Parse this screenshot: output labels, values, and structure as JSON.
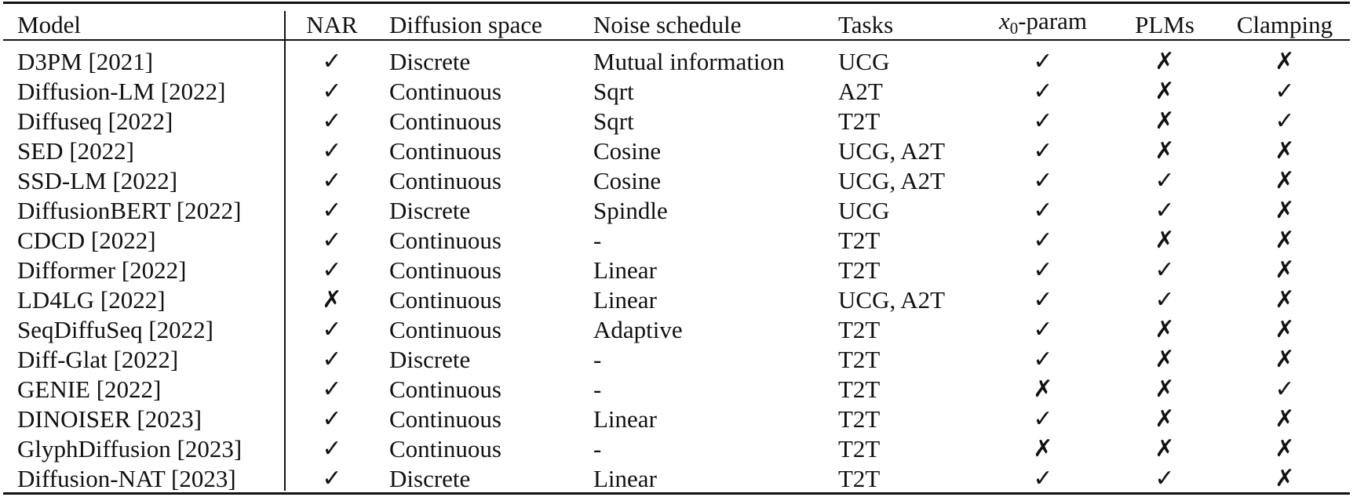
{
  "table": {
    "headers": {
      "model": "Model",
      "nar": "NAR",
      "diffusion_space": "Diffusion space",
      "noise_schedule": "Noise schedule",
      "tasks": "Tasks",
      "x0_param_var": "x",
      "x0_param_sub": "0",
      "x0_param_suffix": "-param",
      "plms": "PLMs",
      "clamping": "Clamping"
    },
    "rows": [
      {
        "model": "D3PM [2021]",
        "nar": "✓",
        "space": "Discrete",
        "noise": "Mutual information",
        "tasks": "UCG",
        "x0": "✓",
        "plms": "✗",
        "clamp": "✗"
      },
      {
        "model": "Diffusion-LM [2022]",
        "nar": "✓",
        "space": "Continuous",
        "noise": "Sqrt",
        "tasks": "A2T",
        "x0": "✓",
        "plms": "✗",
        "clamp": "✓"
      },
      {
        "model": "Diffuseq [2022]",
        "nar": "✓",
        "space": "Continuous",
        "noise": "Sqrt",
        "tasks": "T2T",
        "x0": "✓",
        "plms": "✗",
        "clamp": "✓"
      },
      {
        "model": "SED [2022]",
        "nar": "✓",
        "space": "Continuous",
        "noise": "Cosine",
        "tasks": "UCG, A2T",
        "x0": "✓",
        "plms": "✗",
        "clamp": "✗"
      },
      {
        "model": "SSD-LM [2022]",
        "nar": "✓",
        "space": "Continuous",
        "noise": "Cosine",
        "tasks": "UCG, A2T",
        "x0": "✓",
        "plms": "✓",
        "clamp": "✗"
      },
      {
        "model": "DiffusionBERT [2022]",
        "nar": "✓",
        "space": "Discrete",
        "noise": "Spindle",
        "tasks": "UCG",
        "x0": "✓",
        "plms": "✓",
        "clamp": "✗"
      },
      {
        "model": "CDCD [2022]",
        "nar": "✓",
        "space": "Continuous",
        "noise": "-",
        "tasks": "T2T",
        "x0": "✓",
        "plms": "✗",
        "clamp": "✗"
      },
      {
        "model": "Difformer [2022]",
        "nar": "✓",
        "space": "Continuous",
        "noise": "Linear",
        "tasks": "T2T",
        "x0": "✓",
        "plms": "✓",
        "clamp": "✗"
      },
      {
        "model": "LD4LG [2022]",
        "nar": "✗",
        "space": "Continuous",
        "noise": "Linear",
        "tasks": "UCG, A2T",
        "x0": "✓",
        "plms": "✓",
        "clamp": "✗"
      },
      {
        "model": "SeqDiffuSeq [2022]",
        "nar": "✓",
        "space": "Continuous",
        "noise": "Adaptive",
        "tasks": "T2T",
        "x0": "✓",
        "plms": "✗",
        "clamp": "✗"
      },
      {
        "model": "Diff-Glat [2022]",
        "nar": "✓",
        "space": "Discrete",
        "noise": "-",
        "tasks": "T2T",
        "x0": "✓",
        "plms": "✗",
        "clamp": "✗"
      },
      {
        "model": "GENIE [2022]",
        "nar": "✓",
        "space": "Continuous",
        "noise": "-",
        "tasks": "T2T",
        "x0": "✗",
        "plms": "✗",
        "clamp": "✓"
      },
      {
        "model": "DINOISER [2023]",
        "nar": "✓",
        "space": "Continuous",
        "noise": "Linear",
        "tasks": "T2T",
        "x0": "✓",
        "plms": "✗",
        "clamp": "✗"
      },
      {
        "model": "GlyphDiffusion [2023]",
        "nar": "✓",
        "space": "Continuous",
        "noise": "-",
        "tasks": "T2T",
        "x0": "✗",
        "plms": "✗",
        "clamp": "✗"
      },
      {
        "model": "Diffusion-NAT [2023]",
        "nar": "✓",
        "space": "Discrete",
        "noise": "Linear",
        "tasks": "T2T",
        "x0": "✓",
        "plms": "✓",
        "clamp": "✗"
      }
    ]
  }
}
